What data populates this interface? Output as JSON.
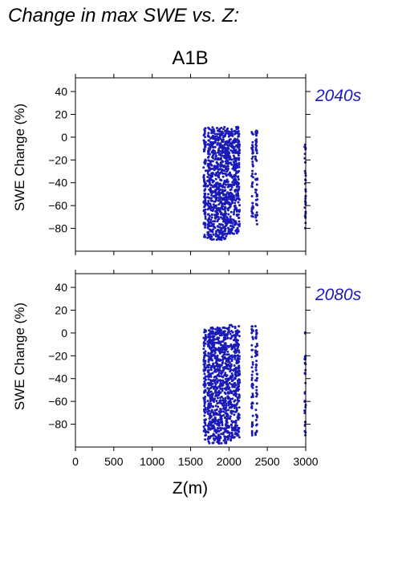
{
  "page_title": "Change in max SWE vs. Z:",
  "scenario": "A1B",
  "shared_xlabel": "Z(m)",
  "colors": {
    "points": "#1a1ab8",
    "period_label": "#1a1ab8",
    "axis": "#000000"
  },
  "chart_data": [
    {
      "type": "scatter",
      "panel_label": "2040s",
      "ylabel": "SWE Change (%)",
      "xlabel": "",
      "xlim": [
        0,
        3000
      ],
      "ylim": [
        -100,
        52
      ],
      "xticks": [
        0,
        500,
        1000,
        1500,
        2000,
        2500,
        3000
      ],
      "xticklabels_shown": false,
      "yticks": [
        -80,
        -60,
        -40,
        -20,
        0,
        20,
        40
      ],
      "yticklabels": [
        "−80",
        "−60",
        "−40",
        "−20",
        "0",
        "20",
        "40"
      ],
      "grid": false,
      "clusters": [
        {
          "x": [
            1670,
            1700
          ],
          "y": [
            -88,
            8
          ],
          "n": 90
        },
        {
          "x": [
            1720,
            1970
          ],
          "y": [
            -90,
            9
          ],
          "n": 650
        },
        {
          "x": [
            1970,
            2050
          ],
          "y": [
            -85,
            8
          ],
          "n": 180
        },
        {
          "x": [
            2060,
            2140
          ],
          "y": [
            -85,
            9
          ],
          "n": 200
        },
        {
          "x": [
            2295,
            2315
          ],
          "y": [
            -70,
            6
          ],
          "n": 45
        },
        {
          "x": [
            2345,
            2370
          ],
          "y": [
            -80,
            6
          ],
          "n": 50
        },
        {
          "x": [
            2985,
            3000
          ],
          "y": [
            -80,
            3
          ],
          "n": 30
        }
      ]
    },
    {
      "type": "scatter",
      "panel_label": "2080s",
      "ylabel": "SWE Change (%)",
      "xlabel": "Z(m)",
      "xlim": [
        0,
        3000
      ],
      "ylim": [
        -100,
        52
      ],
      "xticks": [
        0,
        500,
        1000,
        1500,
        2000,
        2500,
        3000
      ],
      "xticklabels": [
        "0",
        "500",
        "1000",
        "1500",
        "2000",
        "2500",
        "3000"
      ],
      "xticklabels_shown": true,
      "yticks": [
        -80,
        -60,
        -40,
        -20,
        0,
        20,
        40
      ],
      "yticklabels": [
        "−80",
        "−60",
        "−40",
        "−20",
        "0",
        "20",
        "40"
      ],
      "grid": false,
      "clusters": [
        {
          "x": [
            1670,
            1700
          ],
          "y": [
            -95,
            5
          ],
          "n": 90
        },
        {
          "x": [
            1720,
            1970
          ],
          "y": [
            -97,
            5
          ],
          "n": 650
        },
        {
          "x": [
            1970,
            2050
          ],
          "y": [
            -95,
            7
          ],
          "n": 180
        },
        {
          "x": [
            2060,
            2140
          ],
          "y": [
            -92,
            7
          ],
          "n": 200
        },
        {
          "x": [
            2295,
            2315
          ],
          "y": [
            -90,
            6
          ],
          "n": 45
        },
        {
          "x": [
            2345,
            2370
          ],
          "y": [
            -92,
            6
          ],
          "n": 50
        },
        {
          "x": [
            2985,
            3000
          ],
          "y": [
            -90,
            5
          ],
          "n": 30
        }
      ]
    }
  ]
}
